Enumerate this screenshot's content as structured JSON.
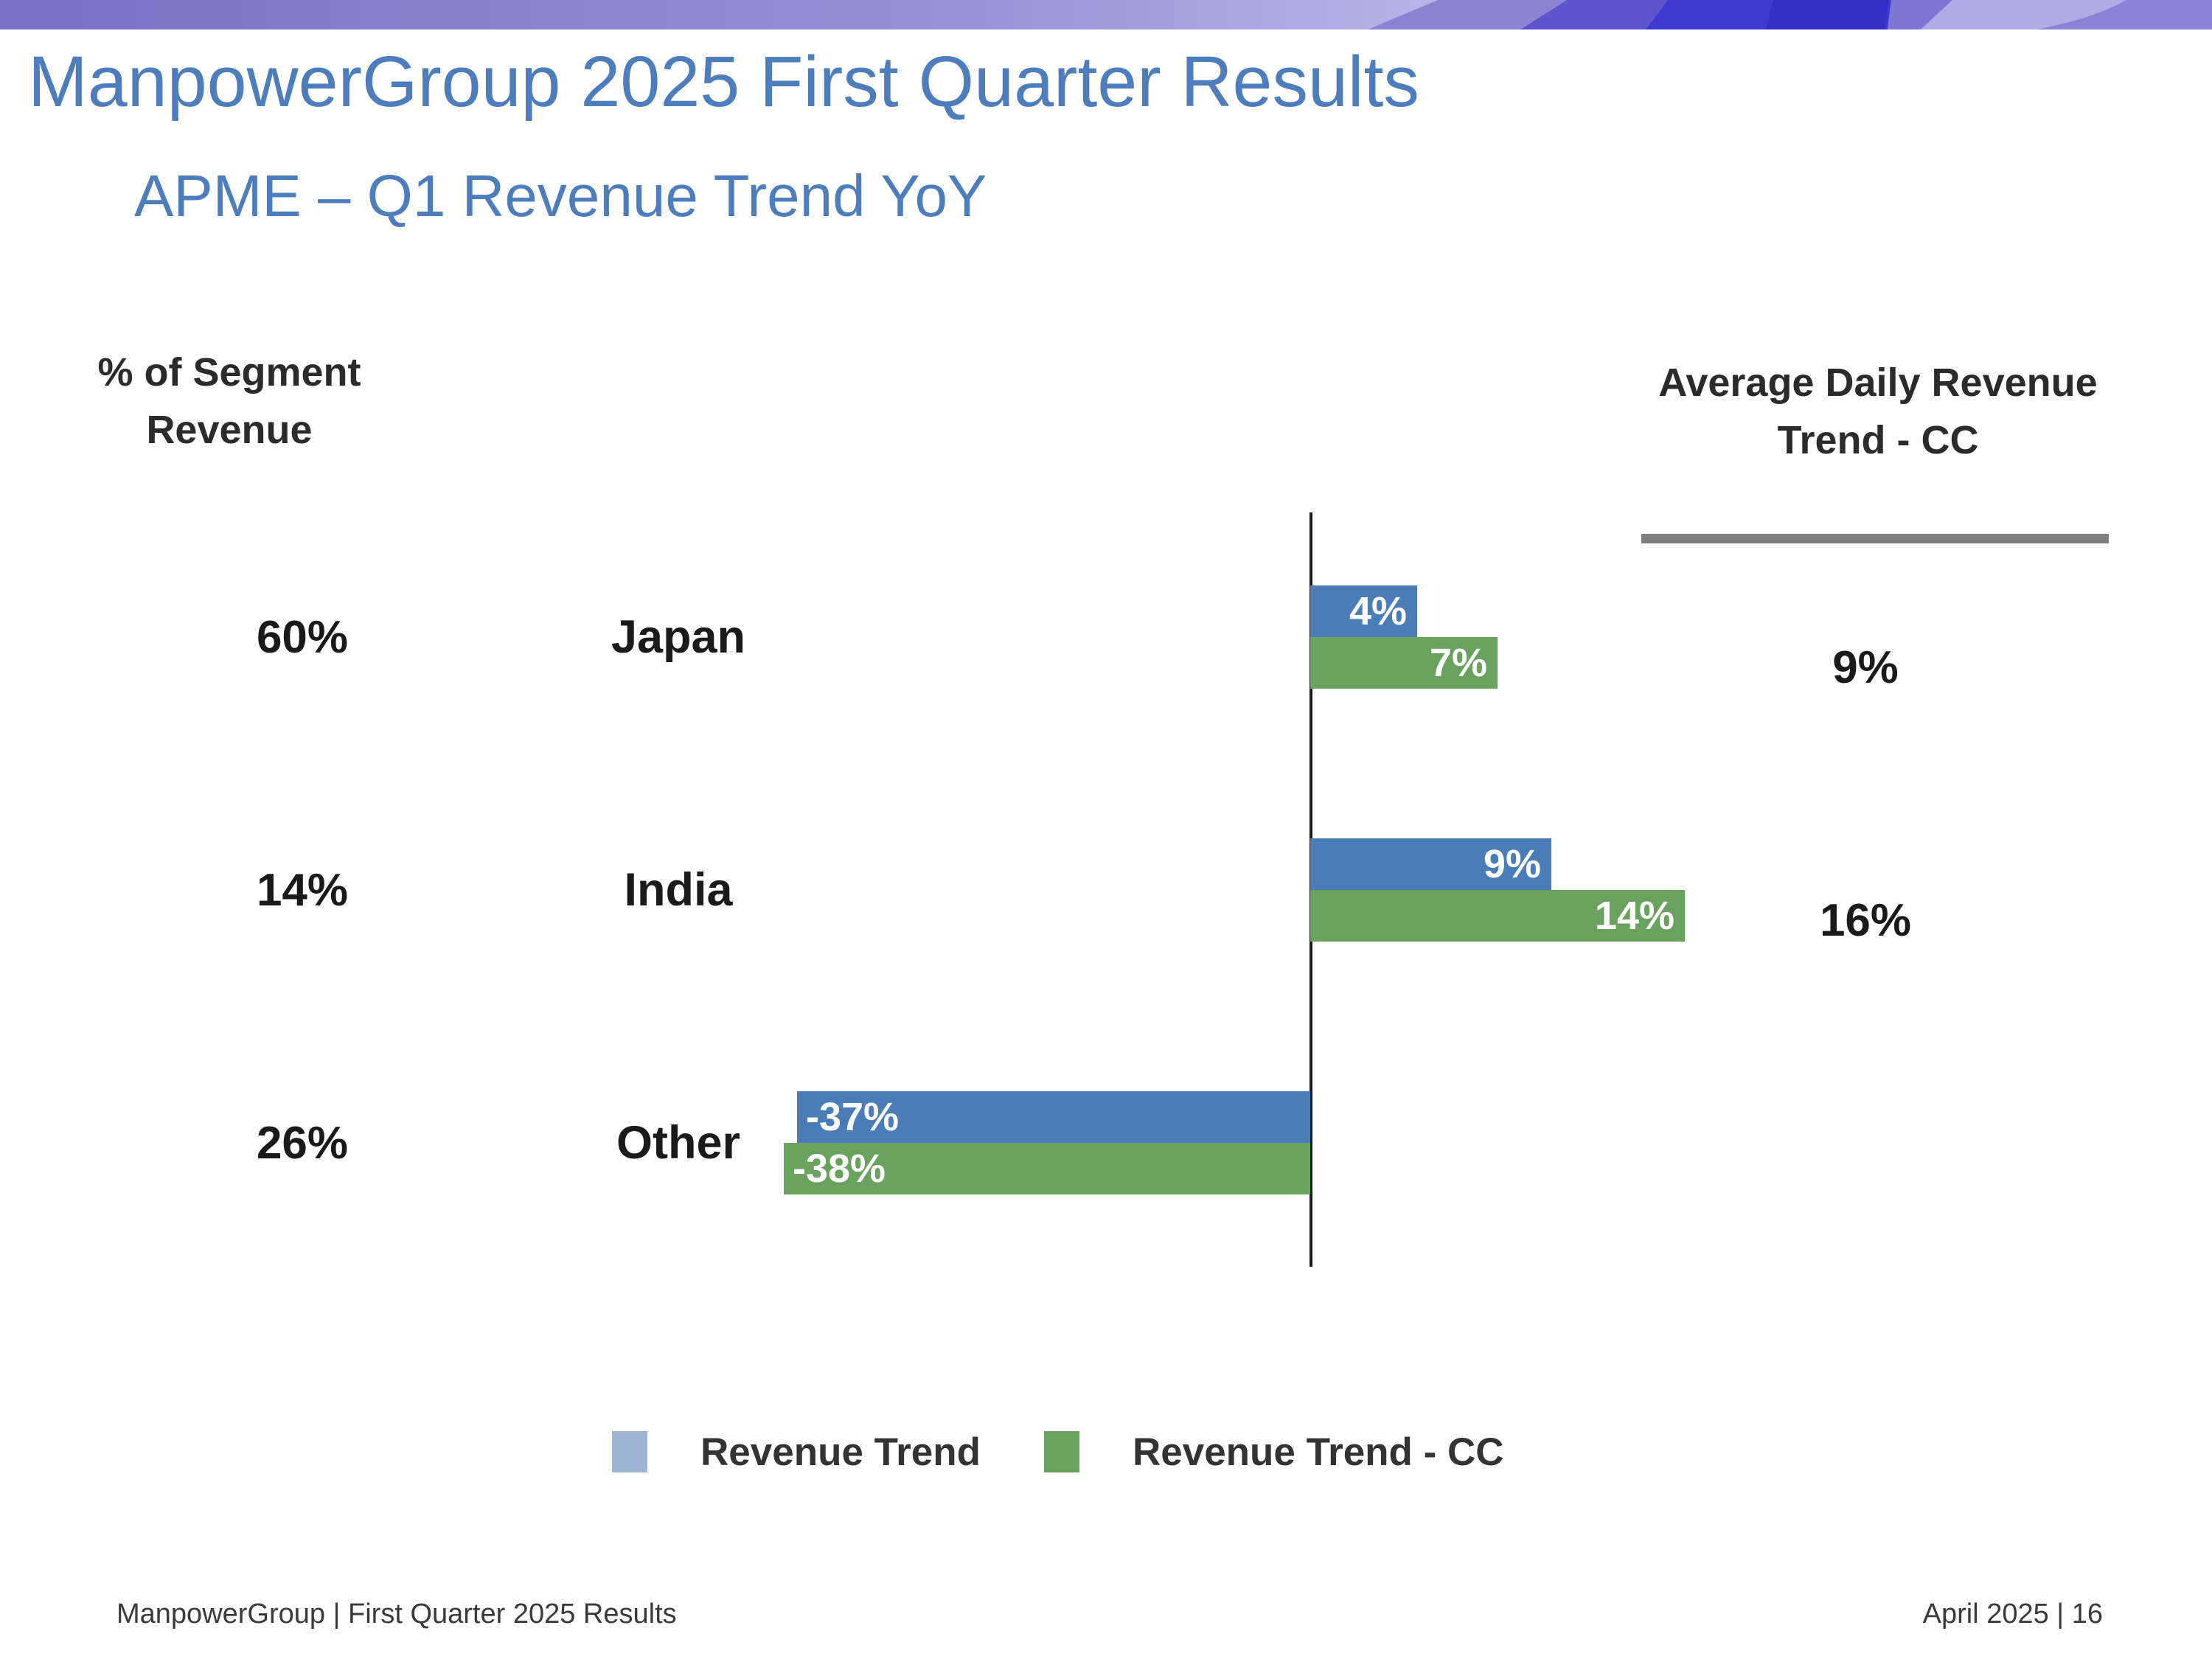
{
  "slide": {
    "title": "ManpowerGroup 2025 First Quarter Results",
    "subtitle": "APME – Q1 Revenue Trend YoY",
    "footer_left": "ManpowerGroup  |  First Quarter 2025 Results",
    "footer_right": "April 2025   |   16"
  },
  "chart_data": {
    "type": "bar",
    "orientation": "horizontal",
    "left_column_header": "% of Segment Revenue",
    "right_column_header": "Average Daily Revenue Trend - CC",
    "categories": [
      "Japan",
      "India",
      "Other"
    ],
    "pct_of_segment_revenue": [
      "60%",
      "14%",
      "26%"
    ],
    "series": [
      {
        "name": "Revenue Trend",
        "bar_color": "#4a7cb8",
        "legend_color": "#9db5d3",
        "values": [
          4,
          9,
          -37
        ],
        "labels": [
          "4%",
          "9%",
          "-37%"
        ]
      },
      {
        "name": "Revenue Trend - CC",
        "bar_color": "#69a25e",
        "legend_color": "#69a25e",
        "values": [
          7,
          14,
          -38
        ],
        "labels": [
          "7%",
          "14%",
          "-38%"
        ]
      }
    ],
    "avg_daily_revenue_trend_cc": [
      "9%",
      "16%",
      ""
    ],
    "zero_axis_line": true,
    "legend_position": "bottom",
    "grid": false
  },
  "colors": {
    "title_blue": "#4e7dbd",
    "bar_blue": "#4a7cb8",
    "bar_green": "#69a25e",
    "legend_blue": "#9db5d3",
    "text_dark": "#1a1a1a",
    "underline_gray": "#7f7f7f",
    "axis_black": "#1b1b1b"
  }
}
